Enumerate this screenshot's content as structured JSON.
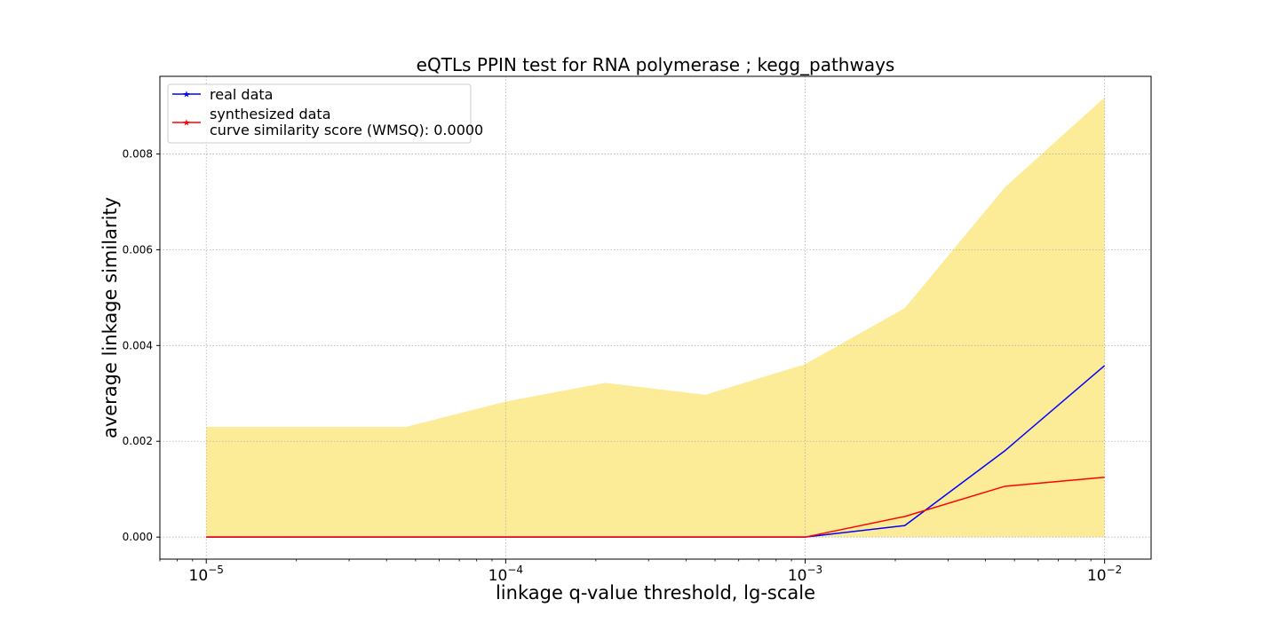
{
  "chart_data": {
    "type": "line",
    "title": "eQTLs PPIN test for RNA polymerase ; kegg_pathways",
    "xlabel": "linkage q-value threshold, lg-scale",
    "ylabel": "average linkage similarity",
    "x_scale": "log",
    "xlim": [
      7e-06,
      0.0143
    ],
    "ylim": [
      -0.00046,
      0.00962
    ],
    "grid": true,
    "grid_style": "dotted",
    "legend_position": "top-left",
    "x_ticks": [
      {
        "value": 1e-05,
        "base": "10",
        "exp": "−5"
      },
      {
        "value": 0.0001,
        "base": "10",
        "exp": "−4"
      },
      {
        "value": 0.001,
        "base": "10",
        "exp": "−3"
      },
      {
        "value": 0.01,
        "base": "10",
        "exp": "−2"
      }
    ],
    "y_ticks": [
      {
        "value": 0.0,
        "label": "0.000"
      },
      {
        "value": 0.002,
        "label": "0.002"
      },
      {
        "value": 0.004,
        "label": "0.004"
      },
      {
        "value": 0.006,
        "label": "0.006"
      },
      {
        "value": 0.008,
        "label": "0.008"
      }
    ],
    "x": [
      1e-05,
      4.64e-05,
      0.0001,
      0.000215,
      0.000464,
      0.001,
      0.00215,
      0.00464,
      0.01
    ],
    "band": {
      "color": "#fdec97",
      "lower": [
        0,
        0,
        0,
        0,
        0,
        0,
        0,
        0,
        0
      ],
      "upper": [
        0.0023,
        0.0023,
        0.00283,
        0.00322,
        0.00297,
        0.00361,
        0.00478,
        0.0073,
        0.00918
      ]
    },
    "series": [
      {
        "name": "real data",
        "color": "#0000ff",
        "values": [
          0,
          0,
          0,
          0,
          0,
          0,
          0.00024,
          0.0018,
          0.00358
        ]
      },
      {
        "name": "synthesized data",
        "extra_label": "curve similarity score (WMSQ): 0.0000",
        "color": "#ff0000",
        "values": [
          0,
          0,
          0,
          0,
          0,
          0,
          0.00043,
          0.00106,
          0.00125
        ]
      }
    ]
  }
}
